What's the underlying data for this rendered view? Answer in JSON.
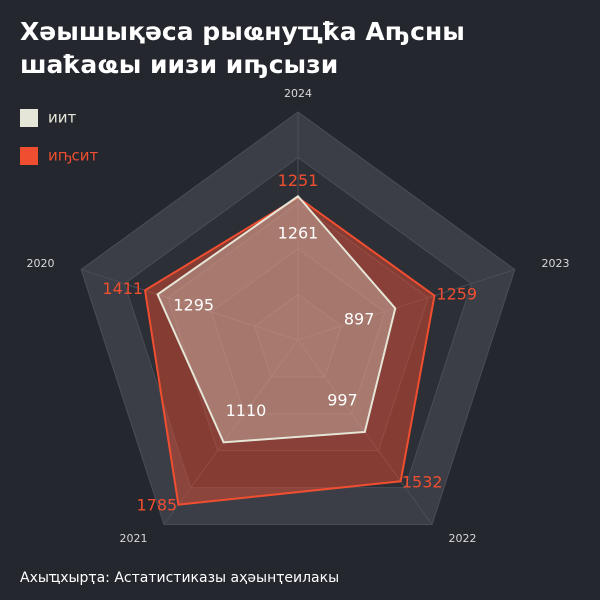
{
  "chart_data": {
    "type": "radar",
    "title": [
      "Хәышықәса рыҩнуҵҟа Аҧсны",
      "шаҟаҩы иизи иҧсызи"
    ],
    "categories": [
      "2024",
      "2023",
      "2022",
      "2021",
      "2020"
    ],
    "series": [
      {
        "name": "иҧсит",
        "color": "#f04e30",
        "values": [
          1251,
          1259,
          1532,
          1785,
          1411
        ]
      },
      {
        "name": "иит",
        "color": "#e6e6d8",
        "values": [
          1261,
          897,
          997,
          1110,
          1295
        ]
      }
    ],
    "rlim": [
      0,
      2000
    ],
    "legend": "top-left",
    "source": "Ахыҵхырҭа: Астатистиказы аҳәынҭеилакы"
  }
}
